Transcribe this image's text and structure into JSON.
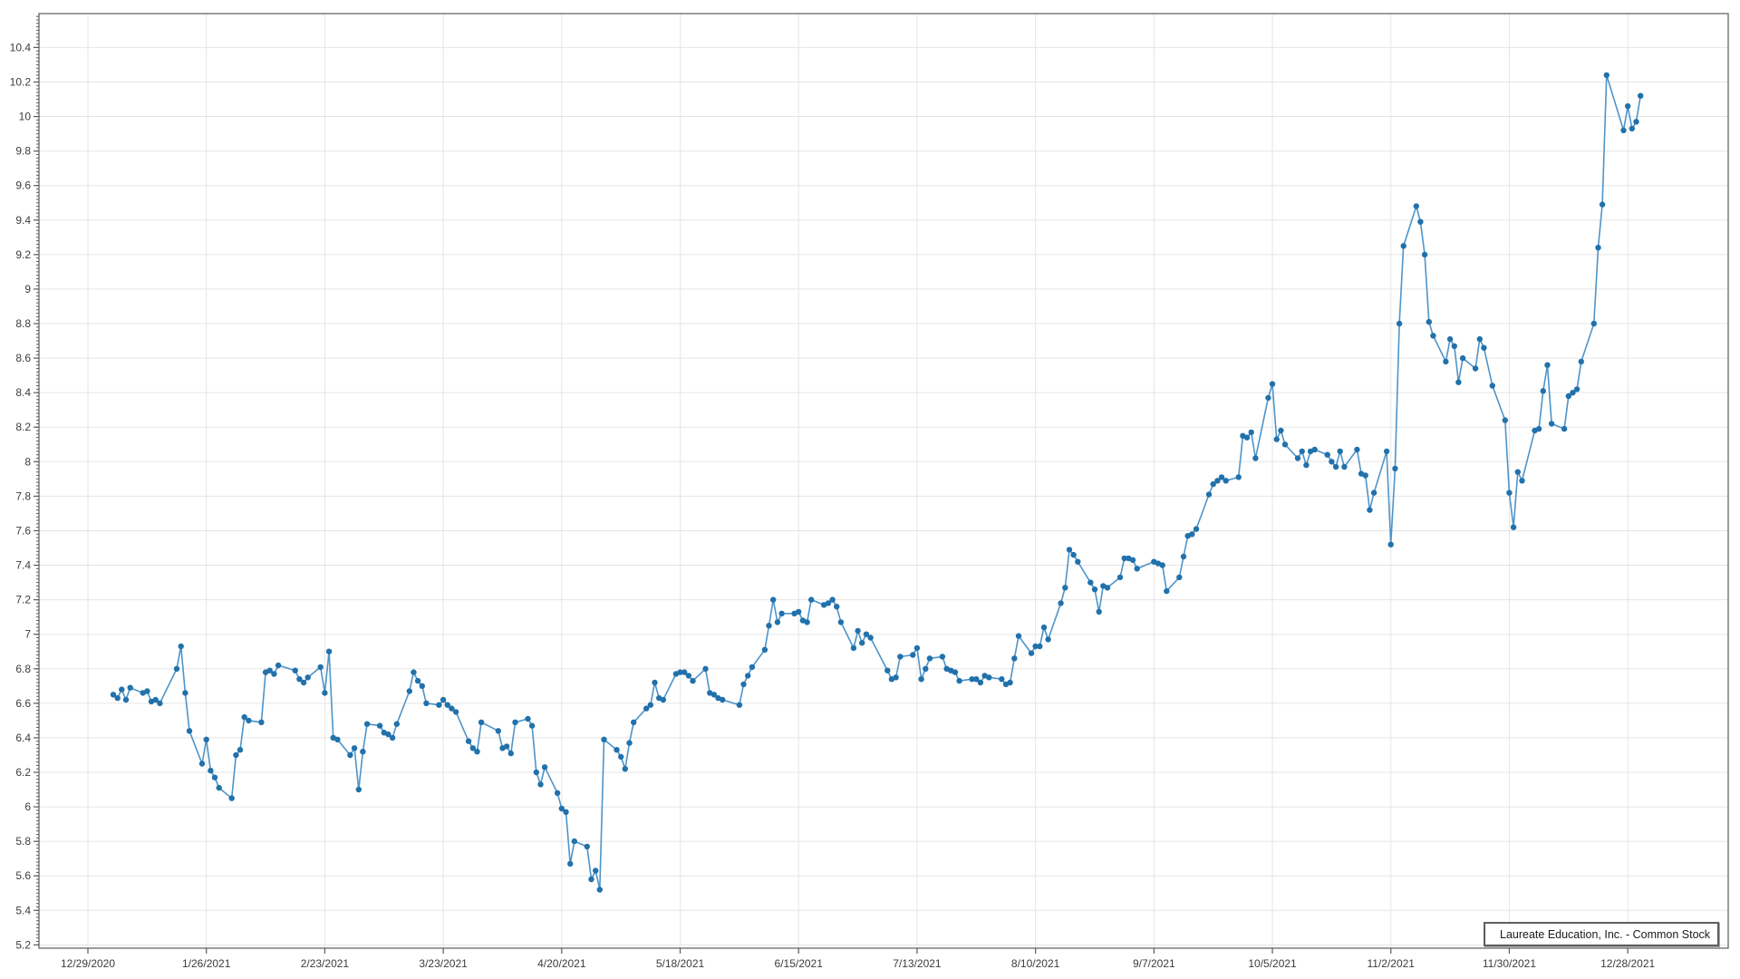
{
  "chart_data": {
    "type": "line",
    "title": "",
    "legend": {
      "label": "Laureate Education, Inc. - Common Stock",
      "position": "bottom-right"
    },
    "grid": true,
    "colors": {
      "line": "#4e94c9",
      "marker": "#2171ab",
      "grid": "#e5e5e5",
      "plot_border": "#5a5a5a",
      "tick": "#5a5a5a",
      "tick_label": "#3c3c3c",
      "background": "#ffffff"
    },
    "x_axis": {
      "ticks": [
        {
          "date": "2020-12-29",
          "label": "12/29/2020"
        },
        {
          "date": "2021-01-26",
          "label": "1/26/2021"
        },
        {
          "date": "2021-02-23",
          "label": "2/23/2021"
        },
        {
          "date": "2021-03-23",
          "label": "3/23/2021"
        },
        {
          "date": "2021-04-20",
          "label": "4/20/2021"
        },
        {
          "date": "2021-05-18",
          "label": "5/18/2021"
        },
        {
          "date": "2021-06-15",
          "label": "6/15/2021"
        },
        {
          "date": "2021-07-13",
          "label": "7/13/2021"
        },
        {
          "date": "2021-08-10",
          "label": "8/10/2021"
        },
        {
          "date": "2021-09-07",
          "label": "9/7/2021"
        },
        {
          "date": "2021-10-05",
          "label": "10/5/2021"
        },
        {
          "date": "2021-11-02",
          "label": "11/2/2021"
        },
        {
          "date": "2021-11-30",
          "label": "11/30/2021"
        },
        {
          "date": "2021-12-28",
          "label": "12/28/2021"
        }
      ]
    },
    "y_axis": {
      "label_min": 5.2,
      "label_max": 10.4,
      "label_step": 0.2,
      "minor_step": 0.02,
      "range": [
        5.181,
        10.597
      ]
    },
    "series": [
      {
        "name": "Laureate Education, Inc. - Common Stock",
        "dates": [
          "2021-01-04",
          "2021-01-05",
          "2021-01-06",
          "2021-01-07",
          "2021-01-08",
          "2021-01-11",
          "2021-01-12",
          "2021-01-13",
          "2021-01-14",
          "2021-01-15",
          "2021-01-19",
          "2021-01-20",
          "2021-01-21",
          "2021-01-22",
          "2021-01-25",
          "2021-01-26",
          "2021-01-27",
          "2021-01-28",
          "2021-01-29",
          "2021-02-01",
          "2021-02-02",
          "2021-02-03",
          "2021-02-04",
          "2021-02-05",
          "2021-02-08",
          "2021-02-09",
          "2021-02-10",
          "2021-02-11",
          "2021-02-12",
          "2021-02-16",
          "2021-02-17",
          "2021-02-18",
          "2021-02-19",
          "2021-02-22",
          "2021-02-23",
          "2021-02-24",
          "2021-02-25",
          "2021-02-26",
          "2021-03-01",
          "2021-03-02",
          "2021-03-03",
          "2021-03-04",
          "2021-03-05",
          "2021-03-08",
          "2021-03-09",
          "2021-03-10",
          "2021-03-11",
          "2021-03-12",
          "2021-03-15",
          "2021-03-16",
          "2021-03-17",
          "2021-03-18",
          "2021-03-19",
          "2021-03-22",
          "2021-03-23",
          "2021-03-24",
          "2021-03-25",
          "2021-03-26",
          "2021-03-29",
          "2021-03-30",
          "2021-03-31",
          "2021-04-01",
          "2021-04-05",
          "2021-04-06",
          "2021-04-07",
          "2021-04-08",
          "2021-04-09",
          "2021-04-12",
          "2021-04-13",
          "2021-04-14",
          "2021-04-15",
          "2021-04-16",
          "2021-04-19",
          "2021-04-20",
          "2021-04-21",
          "2021-04-22",
          "2021-04-23",
          "2021-04-26",
          "2021-04-27",
          "2021-04-28",
          "2021-04-29",
          "2021-04-30",
          "2021-05-03",
          "2021-05-04",
          "2021-05-05",
          "2021-05-06",
          "2021-05-07",
          "2021-05-10",
          "2021-05-11",
          "2021-05-12",
          "2021-05-13",
          "2021-05-14",
          "2021-05-17",
          "2021-05-18",
          "2021-05-19",
          "2021-05-20",
          "2021-05-21",
          "2021-05-24",
          "2021-05-25",
          "2021-05-26",
          "2021-05-27",
          "2021-05-28",
          "2021-06-01",
          "2021-06-02",
          "2021-06-03",
          "2021-06-04",
          "2021-06-07",
          "2021-06-08",
          "2021-06-09",
          "2021-06-10",
          "2021-06-11",
          "2021-06-14",
          "2021-06-15",
          "2021-06-16",
          "2021-06-17",
          "2021-06-18",
          "2021-06-21",
          "2021-06-22",
          "2021-06-23",
          "2021-06-24",
          "2021-06-25",
          "2021-06-28",
          "2021-06-29",
          "2021-06-30",
          "2021-07-01",
          "2021-07-02",
          "2021-07-06",
          "2021-07-07",
          "2021-07-08",
          "2021-07-09",
          "2021-07-12",
          "2021-07-13",
          "2021-07-14",
          "2021-07-15",
          "2021-07-16",
          "2021-07-19",
          "2021-07-20",
          "2021-07-21",
          "2021-07-22",
          "2021-07-23",
          "2021-07-26",
          "2021-07-27",
          "2021-07-28",
          "2021-07-29",
          "2021-07-30",
          "2021-08-02",
          "2021-08-03",
          "2021-08-04",
          "2021-08-05",
          "2021-08-06",
          "2021-08-09",
          "2021-08-10",
          "2021-08-11",
          "2021-08-12",
          "2021-08-13",
          "2021-08-16",
          "2021-08-17",
          "2021-08-18",
          "2021-08-19",
          "2021-08-20",
          "2021-08-23",
          "2021-08-24",
          "2021-08-25",
          "2021-08-26",
          "2021-08-27",
          "2021-08-30",
          "2021-08-31",
          "2021-09-01",
          "2021-09-02",
          "2021-09-03",
          "2021-09-07",
          "2021-09-08",
          "2021-09-09",
          "2021-09-10",
          "2021-09-13",
          "2021-09-14",
          "2021-09-15",
          "2021-09-16",
          "2021-09-17",
          "2021-09-20",
          "2021-09-21",
          "2021-09-22",
          "2021-09-23",
          "2021-09-24",
          "2021-09-27",
          "2021-09-28",
          "2021-09-29",
          "2021-09-30",
          "2021-10-01",
          "2021-10-04",
          "2021-10-05",
          "2021-10-06",
          "2021-10-07",
          "2021-10-08",
          "2021-10-11",
          "2021-10-12",
          "2021-10-13",
          "2021-10-14",
          "2021-10-15",
          "2021-10-18",
          "2021-10-19",
          "2021-10-20",
          "2021-10-21",
          "2021-10-22",
          "2021-10-25",
          "2021-10-26",
          "2021-10-27",
          "2021-10-28",
          "2021-10-29",
          "2021-11-01",
          "2021-11-02",
          "2021-11-03",
          "2021-11-04",
          "2021-11-05",
          "2021-11-08",
          "2021-11-09",
          "2021-11-10",
          "2021-11-11",
          "2021-11-12",
          "2021-11-15",
          "2021-11-16",
          "2021-11-17",
          "2021-11-18",
          "2021-11-19",
          "2021-11-22",
          "2021-11-23",
          "2021-11-24",
          "2021-11-26",
          "2021-11-29",
          "2021-11-30",
          "2021-12-01",
          "2021-12-02",
          "2021-12-03",
          "2021-12-06",
          "2021-12-07",
          "2021-12-08",
          "2021-12-09",
          "2021-12-10",
          "2021-12-13",
          "2021-12-14",
          "2021-12-15",
          "2021-12-16",
          "2021-12-17",
          "2021-12-20",
          "2021-12-21",
          "2021-12-22",
          "2021-12-23",
          "2021-12-27",
          "2021-12-28",
          "2021-12-29",
          "2021-12-30",
          "2021-12-31"
        ],
        "values": [
          6.65,
          6.63,
          6.68,
          6.62,
          6.69,
          6.66,
          6.67,
          6.61,
          6.62,
          6.6,
          6.8,
          6.93,
          6.66,
          6.44,
          6.25,
          6.39,
          6.21,
          6.17,
          6.11,
          6.05,
          6.3,
          6.33,
          6.52,
          6.5,
          6.49,
          6.78,
          6.79,
          6.77,
          6.82,
          6.79,
          6.74,
          6.72,
          6.75,
          6.81,
          6.66,
          6.9,
          6.4,
          6.39,
          6.3,
          6.34,
          6.1,
          6.32,
          6.48,
          6.47,
          6.43,
          6.42,
          6.4,
          6.48,
          6.67,
          6.78,
          6.73,
          6.7,
          6.6,
          6.59,
          6.62,
          6.59,
          6.57,
          6.55,
          6.38,
          6.34,
          6.32,
          6.49,
          6.44,
          6.34,
          6.35,
          6.31,
          6.49,
          6.51,
          6.47,
          6.2,
          6.13,
          6.23,
          6.08,
          5.99,
          5.97,
          5.67,
          5.8,
          5.77,
          5.58,
          5.63,
          5.52,
          6.39,
          6.33,
          6.29,
          6.22,
          6.37,
          6.49,
          6.57,
          6.59,
          6.72,
          6.63,
          6.62,
          6.77,
          6.78,
          6.78,
          6.76,
          6.73,
          6.8,
          6.66,
          6.65,
          6.63,
          6.62,
          6.59,
          6.71,
          6.76,
          6.81,
          6.91,
          7.05,
          7.2,
          7.07,
          7.12,
          7.12,
          7.13,
          7.08,
          7.07,
          7.2,
          7.17,
          7.18,
          7.2,
          7.16,
          7.07,
          6.92,
          7.02,
          6.95,
          7.0,
          6.98,
          6.79,
          6.74,
          6.75,
          6.87,
          6.88,
          6.92,
          6.74,
          6.8,
          6.86,
          6.87,
          6.8,
          6.79,
          6.78,
          6.73,
          6.74,
          6.74,
          6.72,
          6.76,
          6.75,
          6.74,
          6.71,
          6.72,
          6.86,
          6.99,
          6.89,
          6.93,
          6.93,
          7.04,
          6.97,
          7.18,
          7.27,
          7.49,
          7.46,
          7.42,
          7.3,
          7.26,
          7.13,
          7.28,
          7.27,
          7.33,
          7.44,
          7.44,
          7.43,
          7.38,
          7.42,
          7.41,
          7.4,
          7.25,
          7.33,
          7.45,
          7.57,
          7.58,
          7.61,
          7.81,
          7.87,
          7.89,
          7.91,
          7.89,
          7.91,
          8.15,
          8.14,
          8.17,
          8.02,
          8.37,
          8.45,
          8.13,
          8.18,
          8.1,
          8.02,
          8.06,
          7.98,
          8.06,
          8.07,
          8.04,
          8.0,
          7.97,
          8.06,
          7.97,
          8.07,
          7.93,
          7.92,
          7.72,
          7.82,
          8.06,
          7.52,
          7.96,
          8.8,
          9.25,
          9.48,
          9.39,
          9.2,
          8.81,
          8.73,
          8.58,
          8.71,
          8.67,
          8.46,
          8.6,
          8.54,
          8.71,
          8.66,
          8.44,
          8.24,
          7.82,
          7.62,
          7.94,
          7.89,
          8.18,
          8.19,
          8.41,
          8.56,
          8.22,
          8.19,
          8.38,
          8.4,
          8.42,
          8.58,
          8.8,
          9.24,
          9.49,
          10.24,
          9.92,
          10.06,
          9.93,
          9.97,
          10.12
        ]
      }
    ]
  }
}
